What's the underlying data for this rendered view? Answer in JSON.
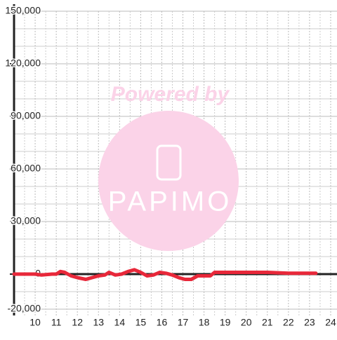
{
  "chart_data": {
    "type": "line",
    "annotations": [
      "Powered by",
      "PAPIMO"
    ],
    "x": [
      9.0,
      10.0,
      10.3,
      10.8,
      11.0,
      11.2,
      11.4,
      11.7,
      12.0,
      12.4,
      12.7,
      13.0,
      13.3,
      13.5,
      13.8,
      14.1,
      14.4,
      14.7,
      15.0,
      15.3,
      15.6,
      15.9,
      16.2,
      16.5,
      16.8,
      17.1,
      17.4,
      17.7,
      18.0,
      18.3,
      18.5,
      19.0,
      20.0,
      21.0,
      22.0,
      23.3
    ],
    "values": [
      0,
      0,
      -500,
      0,
      0,
      1500,
      1000,
      -1000,
      -2000,
      -3000,
      -2000,
      -1000,
      -500,
      1000,
      -500,
      0,
      1500,
      2500,
      1000,
      -1000,
      -500,
      1000,
      500,
      -500,
      -2000,
      -3000,
      -3000,
      -1000,
      -1000,
      -1000,
      1000,
      1000,
      1000,
      1000,
      500,
      500
    ],
    "color": "#e8283a",
    "xlim": [
      9,
      24.3
    ],
    "xticks": [
      10,
      11,
      12,
      13,
      14,
      15,
      16,
      17,
      18,
      19,
      20,
      21,
      22,
      23,
      24
    ],
    "minor_xticks": [
      9.5,
      10.5,
      11.5,
      12.5,
      13.5,
      14.5,
      15.5,
      16.5,
      17.5,
      18.5,
      19.5,
      20.5,
      21.5,
      22.5,
      23.5
    ],
    "ylim": [
      -20000,
      150000
    ],
    "yticks": [
      {
        "value": -20000,
        "label": "-20,000"
      },
      0,
      {
        "value": 30000,
        "label": "30,000"
      },
      {
        "value": 60000,
        "label": "60,000"
      },
      {
        "value": 90000,
        "label": "90,000"
      },
      {
        "value": 120000,
        "label": "120,000"
      },
      {
        "value": 150000,
        "label": "150,000"
      }
    ],
    "minor_yticks": [
      -10000,
      10000,
      20000,
      40000,
      50000,
      70000,
      80000,
      100000,
      110000,
      130000,
      140000
    ],
    "grid": true
  }
}
